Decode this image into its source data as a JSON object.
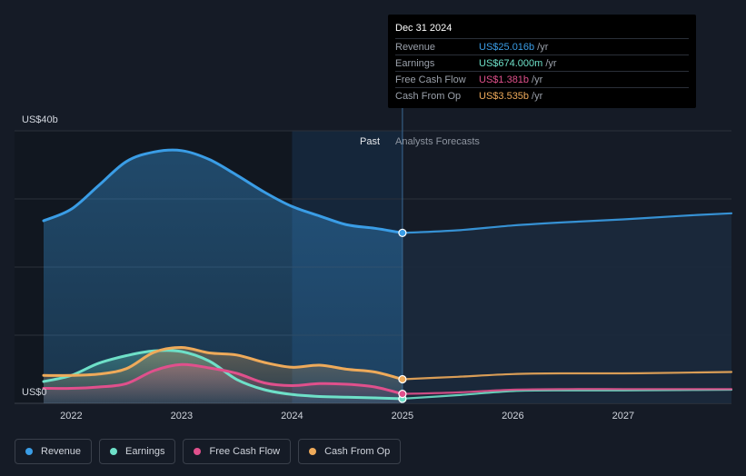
{
  "tooltip": {
    "date": "Dec 31 2024",
    "rows": [
      {
        "label": "Revenue",
        "value": "US$25.016b",
        "unit": "/yr",
        "color": "#3a9de6"
      },
      {
        "label": "Earnings",
        "value": "US$674.000m",
        "unit": "/yr",
        "color": "#6ee0c8"
      },
      {
        "label": "Free Cash Flow",
        "value": "US$1.381b",
        "unit": "/yr",
        "color": "#e0508c"
      },
      {
        "label": "Cash From Op",
        "value": "US$3.535b",
        "unit": "/yr",
        "color": "#eeaa5a"
      }
    ]
  },
  "segments": {
    "past": "Past",
    "forecast": "Analysts Forecasts"
  },
  "chart_data": {
    "type": "area",
    "title": "",
    "ylabel_top": "US$40b",
    "ylabel_bottom": "US$0",
    "ylim": [
      0,
      40
    ],
    "xlim": [
      2021.75,
      2027.98
    ],
    "divider_x": 2025.0,
    "x_ticks": [
      {
        "value": 2022,
        "label": "2022"
      },
      {
        "value": 2023,
        "label": "2023"
      },
      {
        "value": 2024,
        "label": "2024"
      },
      {
        "value": 2025,
        "label": "2025"
      },
      {
        "value": 2026,
        "label": "2026"
      },
      {
        "value": 2027,
        "label": "2027"
      }
    ],
    "series": [
      {
        "name": "Revenue",
        "color": "#3a9de6",
        "points": [
          [
            2021.75,
            26.8
          ],
          [
            2022.0,
            28.5
          ],
          [
            2022.25,
            32.0
          ],
          [
            2022.5,
            35.5
          ],
          [
            2022.75,
            36.9
          ],
          [
            2023.0,
            37.1
          ],
          [
            2023.25,
            35.8
          ],
          [
            2023.5,
            33.5
          ],
          [
            2023.75,
            31.0
          ],
          [
            2024.0,
            28.9
          ],
          [
            2024.25,
            27.5
          ],
          [
            2024.5,
            26.2
          ],
          [
            2024.75,
            25.7
          ],
          [
            2025.0,
            25.02
          ],
          [
            2025.5,
            25.4
          ],
          [
            2026.0,
            26.1
          ],
          [
            2026.5,
            26.6
          ],
          [
            2027.0,
            27.0
          ],
          [
            2027.5,
            27.5
          ],
          [
            2027.98,
            27.9
          ]
        ]
      },
      {
        "name": "Earnings",
        "color": "#6ee0c8",
        "points": [
          [
            2021.75,
            3.2
          ],
          [
            2022.0,
            4.1
          ],
          [
            2022.25,
            5.9
          ],
          [
            2022.5,
            7.0
          ],
          [
            2022.75,
            7.7
          ],
          [
            2023.0,
            7.6
          ],
          [
            2023.25,
            6.2
          ],
          [
            2023.5,
            3.5
          ],
          [
            2023.75,
            2.0
          ],
          [
            2024.0,
            1.3
          ],
          [
            2024.25,
            1.0
          ],
          [
            2024.5,
            0.9
          ],
          [
            2024.75,
            0.8
          ],
          [
            2025.0,
            0.674
          ],
          [
            2025.5,
            1.2
          ],
          [
            2026.0,
            1.8
          ],
          [
            2026.5,
            1.9
          ],
          [
            2027.0,
            1.9
          ],
          [
            2027.5,
            1.95
          ],
          [
            2027.98,
            2.0
          ]
        ]
      },
      {
        "name": "Free Cash Flow",
        "color": "#e0508c",
        "points": [
          [
            2021.75,
            2.2
          ],
          [
            2022.0,
            2.2
          ],
          [
            2022.25,
            2.4
          ],
          [
            2022.5,
            2.9
          ],
          [
            2022.75,
            4.8
          ],
          [
            2023.0,
            5.7
          ],
          [
            2023.25,
            5.2
          ],
          [
            2023.5,
            4.4
          ],
          [
            2023.75,
            3.0
          ],
          [
            2024.0,
            2.6
          ],
          [
            2024.25,
            2.9
          ],
          [
            2024.5,
            2.8
          ],
          [
            2024.75,
            2.4
          ],
          [
            2025.0,
            1.381
          ],
          [
            2025.5,
            1.6
          ],
          [
            2026.0,
            2.0
          ],
          [
            2026.5,
            2.1
          ],
          [
            2027.0,
            2.1
          ],
          [
            2027.5,
            2.1
          ],
          [
            2027.98,
            2.1
          ]
        ]
      },
      {
        "name": "Cash From Op",
        "color": "#eeaa5a",
        "points": [
          [
            2021.75,
            4.1
          ],
          [
            2022.0,
            4.1
          ],
          [
            2022.25,
            4.3
          ],
          [
            2022.5,
            5.1
          ],
          [
            2022.75,
            7.5
          ],
          [
            2023.0,
            8.2
          ],
          [
            2023.25,
            7.4
          ],
          [
            2023.5,
            7.1
          ],
          [
            2023.75,
            6.0
          ],
          [
            2024.0,
            5.3
          ],
          [
            2024.25,
            5.6
          ],
          [
            2024.5,
            5.0
          ],
          [
            2024.75,
            4.6
          ],
          [
            2025.0,
            3.535
          ],
          [
            2025.5,
            3.9
          ],
          [
            2026.0,
            4.3
          ],
          [
            2026.5,
            4.4
          ],
          [
            2027.0,
            4.4
          ],
          [
            2027.5,
            4.5
          ],
          [
            2027.98,
            4.6
          ]
        ]
      }
    ]
  },
  "legend": [
    {
      "label": "Revenue",
      "color": "#3a9de6"
    },
    {
      "label": "Earnings",
      "color": "#6ee0c8"
    },
    {
      "label": "Free Cash Flow",
      "color": "#e0508c"
    },
    {
      "label": "Cash From Op",
      "color": "#eeaa5a"
    }
  ]
}
